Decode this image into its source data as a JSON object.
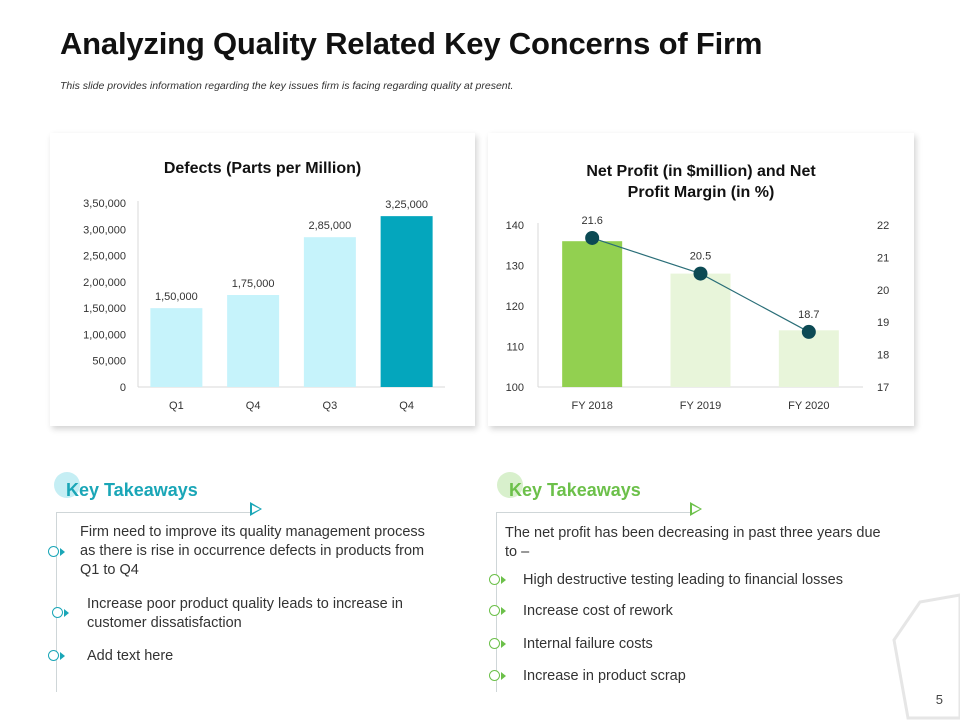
{
  "header": {
    "title": "Analyzing Quality Related Key Concerns of Firm",
    "subtitle": "This slide provides information regarding the key issues firm is facing regarding quality at present."
  },
  "chart_data": [
    {
      "type": "bar",
      "title": "Defects (Parts per Million)",
      "categories": [
        "Q1",
        "Q4",
        "Q3",
        "Q4"
      ],
      "values": [
        150000,
        175000,
        285000,
        325000
      ],
      "value_labels": [
        "1,50,000",
        "1,75,000",
        "2,85,000",
        "3,25,000"
      ],
      "yticks": [
        "0",
        "50,000",
        "1,00,000",
        "1,50,000",
        "2,00,000",
        "2,50,000",
        "3,00,000",
        "3,50,000"
      ],
      "ylim": [
        0,
        350000
      ],
      "colors": [
        "#c6f3fb",
        "#c6f3fb",
        "#c6f3fb",
        "#04a6bd"
      ]
    },
    {
      "type": "bar+line",
      "title_line1": "Net Profit (in $million) and Net",
      "title_line2": "Profit Margin (in %)",
      "categories": [
        "FY 2018",
        "FY 2019",
        "FY 2020"
      ],
      "bar_values": [
        136,
        128,
        114
      ],
      "bar_colors": [
        "#92d050",
        "#e8f5da",
        "#e8f5da"
      ],
      "ylim": [
        100,
        140
      ],
      "yticks_left": [
        "100",
        "110",
        "120",
        "130",
        "140"
      ],
      "line_values": [
        21.6,
        20.5,
        18.7
      ],
      "line_labels": [
        "21.6",
        "20.5",
        "18.7"
      ],
      "y2lim": [
        17,
        22
      ],
      "yticks_right": [
        "17",
        "18",
        "19",
        "20",
        "21",
        "22"
      ],
      "line_color": "#2a6e78",
      "marker_color": "#0c4a54"
    }
  ],
  "takeaways_left": {
    "heading": "Key Takeaways",
    "color": "#1aa6b7",
    "items": [
      "Firm need to improve its quality management process as there is rise in occurrence defects in products from Q1 to Q4",
      "Increase poor product quality leads to increase in customer dissatisfaction",
      "Add text here"
    ]
  },
  "takeaways_right": {
    "heading": "Key Takeaways",
    "color": "#6cc04a",
    "intro": "The net profit has been decreasing in past three years due to –",
    "items": [
      "High destructive testing leading to financial losses",
      "Increase cost of rework",
      "Internal failure costs",
      "Increase in product scrap"
    ]
  },
  "footer": {
    "page_number": "5"
  }
}
